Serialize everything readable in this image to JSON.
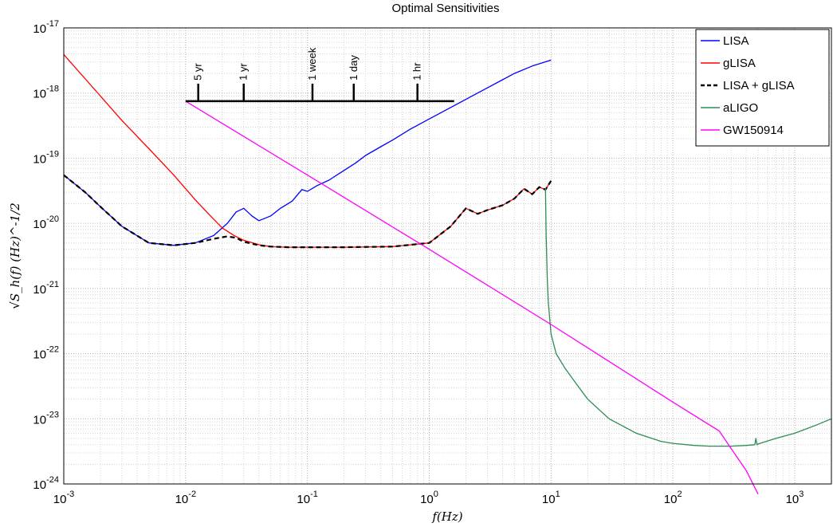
{
  "chart_data": {
    "type": "line",
    "title": "Optimal Sensitivities",
    "xlabel": "f(Hz)",
    "ylabel": "√S_h(f) (Hz)^-1/2",
    "x_scale": "log",
    "y_scale": "log",
    "xlim": [
      0.001,
      2000
    ],
    "ylim": [
      1e-24,
      1e-17
    ],
    "grid": true,
    "minor_grid": true,
    "legend_position": "top-right",
    "x_ticks": [
      {
        "value": 0.001,
        "base": "10",
        "exp": "-3"
      },
      {
        "value": 0.01,
        "base": "10",
        "exp": "-2"
      },
      {
        "value": 0.1,
        "base": "10",
        "exp": "-1"
      },
      {
        "value": 1,
        "base": "10",
        "exp": "0"
      },
      {
        "value": 10,
        "base": "10",
        "exp": "1"
      },
      {
        "value": 100,
        "base": "10",
        "exp": "2"
      },
      {
        "value": 1000,
        "base": "10",
        "exp": "3"
      }
    ],
    "y_ticks": [
      {
        "value": 1e-24,
        "base": "10",
        "exp": "-24"
      },
      {
        "value": 1e-23,
        "base": "10",
        "exp": "-23"
      },
      {
        "value": 1e-22,
        "base": "10",
        "exp": "-22"
      },
      {
        "value": 1e-21,
        "base": "10",
        "exp": "-21"
      },
      {
        "value": 1e-20,
        "base": "10",
        "exp": "-20"
      },
      {
        "value": 1e-19,
        "base": "10",
        "exp": "-19"
      },
      {
        "value": 1e-18,
        "base": "10",
        "exp": "-18"
      },
      {
        "value": 1e-17,
        "base": "10",
        "exp": "-17"
      }
    ],
    "series": [
      {
        "name": "LISA",
        "color": "#0000ff",
        "style": "solid",
        "x": [
          0.001,
          0.0015,
          0.002,
          0.003,
          0.005,
          0.008,
          0.012,
          0.017,
          0.022,
          0.026,
          0.03,
          0.035,
          0.04,
          0.05,
          0.06,
          0.075,
          0.09,
          0.1,
          0.12,
          0.15,
          0.2,
          0.25,
          0.3,
          0.4,
          0.5,
          0.7,
          1,
          1.5,
          2,
          3,
          4,
          5,
          7,
          10
        ],
        "y": [
          5.5e-20,
          3e-20,
          1.8e-20,
          9e-21,
          5e-21,
          4.6e-21,
          5e-21,
          6.5e-21,
          1e-20,
          1.5e-20,
          1.7e-20,
          1.3e-20,
          1.1e-20,
          1.3e-20,
          1.7e-20,
          2.2e-20,
          3.3e-20,
          3.1e-20,
          3.8e-20,
          4.6e-20,
          6.5e-20,
          8.5e-20,
          1.1e-19,
          1.5e-19,
          1.9e-19,
          2.8e-19,
          4e-19,
          6e-19,
          8e-19,
          1.2e-18,
          1.6e-18,
          2e-18,
          2.6e-18,
          3.2e-18
        ]
      },
      {
        "name": "gLISA",
        "color": "#ff0000",
        "style": "solid",
        "x": [
          0.001,
          0.002,
          0.003,
          0.005,
          0.008,
          0.012,
          0.016,
          0.02,
          0.025,
          0.03,
          0.04,
          0.05,
          0.07,
          0.1,
          0.2,
          0.5,
          1,
          1.5,
          2,
          2.5,
          3,
          4,
          5,
          6,
          7,
          8,
          9,
          10
        ],
        "y": [
          3.9e-18,
          9e-19,
          3.8e-19,
          1.4e-19,
          5.5e-20,
          2.3e-20,
          1.3e-20,
          8.5e-21,
          6.5e-21,
          5.5e-21,
          4.7e-21,
          4.4e-21,
          4.3e-21,
          4.3e-21,
          4.3e-21,
          4.4e-21,
          5e-21,
          9e-21,
          1.7e-20,
          1.4e-20,
          1.6e-20,
          1.9e-20,
          2.4e-20,
          3.4e-20,
          2.8e-20,
          3.6e-20,
          3.3e-20,
          4.5e-20
        ]
      },
      {
        "name": "LISA + gLISA",
        "color": "#000000",
        "style": "dashed",
        "x": [
          0.001,
          0.0015,
          0.002,
          0.003,
          0.005,
          0.008,
          0.012,
          0.017,
          0.022,
          0.026,
          0.03,
          0.04,
          0.05,
          0.07,
          0.1,
          0.2,
          0.5,
          1,
          1.5,
          2,
          2.5,
          3,
          4,
          5,
          6,
          7,
          8,
          9,
          10
        ],
        "y": [
          5.5e-20,
          3e-20,
          1.8e-20,
          9e-21,
          5e-21,
          4.6e-21,
          5e-21,
          5.8e-21,
          6.3e-21,
          6e-21,
          5.2e-21,
          4.6e-21,
          4.4e-21,
          4.3e-21,
          4.3e-21,
          4.3e-21,
          4.4e-21,
          5e-21,
          9e-21,
          1.7e-20,
          1.4e-20,
          1.6e-20,
          1.9e-20,
          2.4e-20,
          3.4e-20,
          2.8e-20,
          3.6e-20,
          3.3e-20,
          4.5e-20
        ]
      },
      {
        "name": "aLIGO",
        "color": "#2e8b57",
        "style": "solid",
        "x": [
          9,
          9.1,
          9.3,
          9.5,
          10,
          11,
          13,
          16,
          20,
          30,
          50,
          80,
          100,
          150,
          200,
          300,
          400,
          470,
          480,
          490,
          500,
          700,
          1000,
          1500,
          2000
        ],
        "y": [
          3.5e-20,
          7e-21,
          1.5e-21,
          6e-22,
          2e-22,
          1e-22,
          6e-23,
          3.5e-23,
          2e-23,
          1e-23,
          6e-24,
          4.5e-24,
          4.2e-24,
          3.9e-24,
          3.8e-24,
          3.8e-24,
          3.9e-24,
          4e-24,
          5e-24,
          4e-24,
          4.1e-24,
          5e-24,
          6e-24,
          8e-24,
          1e-23
        ]
      },
      {
        "name": "GW150914",
        "color": "#ff00ff",
        "style": "solid",
        "x": [
          0.01,
          0.1,
          1,
          10,
          100,
          240,
          300,
          400,
          500
        ],
        "y": [
          7.5e-19,
          5.5e-20,
          4e-21,
          2.8e-22,
          1.8e-23,
          6.5e-24,
          3.5e-24,
          1.6e-24,
          7e-25
        ]
      }
    ],
    "period_scale": {
      "x_range": [
        0.01,
        1.6
      ],
      "y": 7.5e-19,
      "ticks": [
        {
          "label": "5 yr",
          "x": 0.0127
        },
        {
          "label": "1 yr",
          "x": 0.03
        },
        {
          "label": "1 week",
          "x": 0.11
        },
        {
          "label": "1 day",
          "x": 0.24
        },
        {
          "label": "1 hr",
          "x": 0.8
        }
      ]
    }
  }
}
